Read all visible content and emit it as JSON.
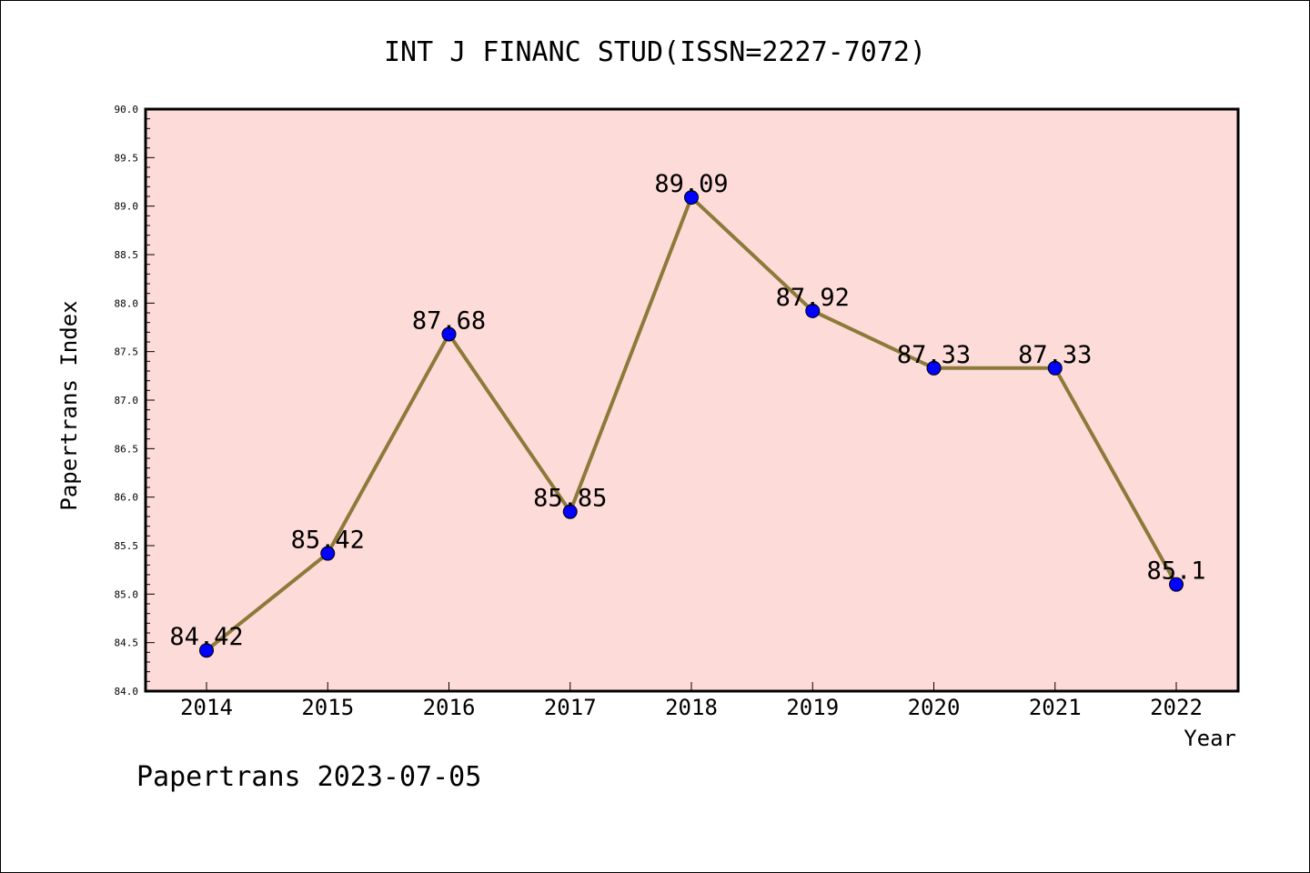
{
  "chart_data": {
    "type": "line",
    "title": "INT J FINANC STUD(ISSN=2227-7072)",
    "xlabel": "Year",
    "ylabel": "Papertrans Index",
    "categories": [
      "2014",
      "2015",
      "2016",
      "2017",
      "2018",
      "2019",
      "2020",
      "2021",
      "2022"
    ],
    "series": [
      {
        "values": [
          84.42,
          85.42,
          87.68,
          85.85,
          89.09,
          87.92,
          87.33,
          87.33,
          85.1
        ],
        "labels": [
          "84.42",
          "85.42",
          "87.68",
          "85.85",
          "89.09",
          "87.92",
          "87.33",
          "87.33",
          "85.1"
        ]
      }
    ],
    "ylim": [
      84.0,
      90.0
    ],
    "yticks": [
      "84.0",
      "84.5",
      "85.0",
      "85.5",
      "86.0",
      "86.5",
      "87.0",
      "87.5",
      "88.0",
      "88.5",
      "89.0",
      "89.5",
      "90.0"
    ],
    "minor_ticks_per_major": 5,
    "grid": false,
    "legend": "none",
    "colors": {
      "plot_background": "#fddbd8",
      "line": "#8c7a3a",
      "marker": "#0000ff",
      "axis": "#000000"
    }
  },
  "footer": {
    "note": "Papertrans 2023-07-05"
  }
}
